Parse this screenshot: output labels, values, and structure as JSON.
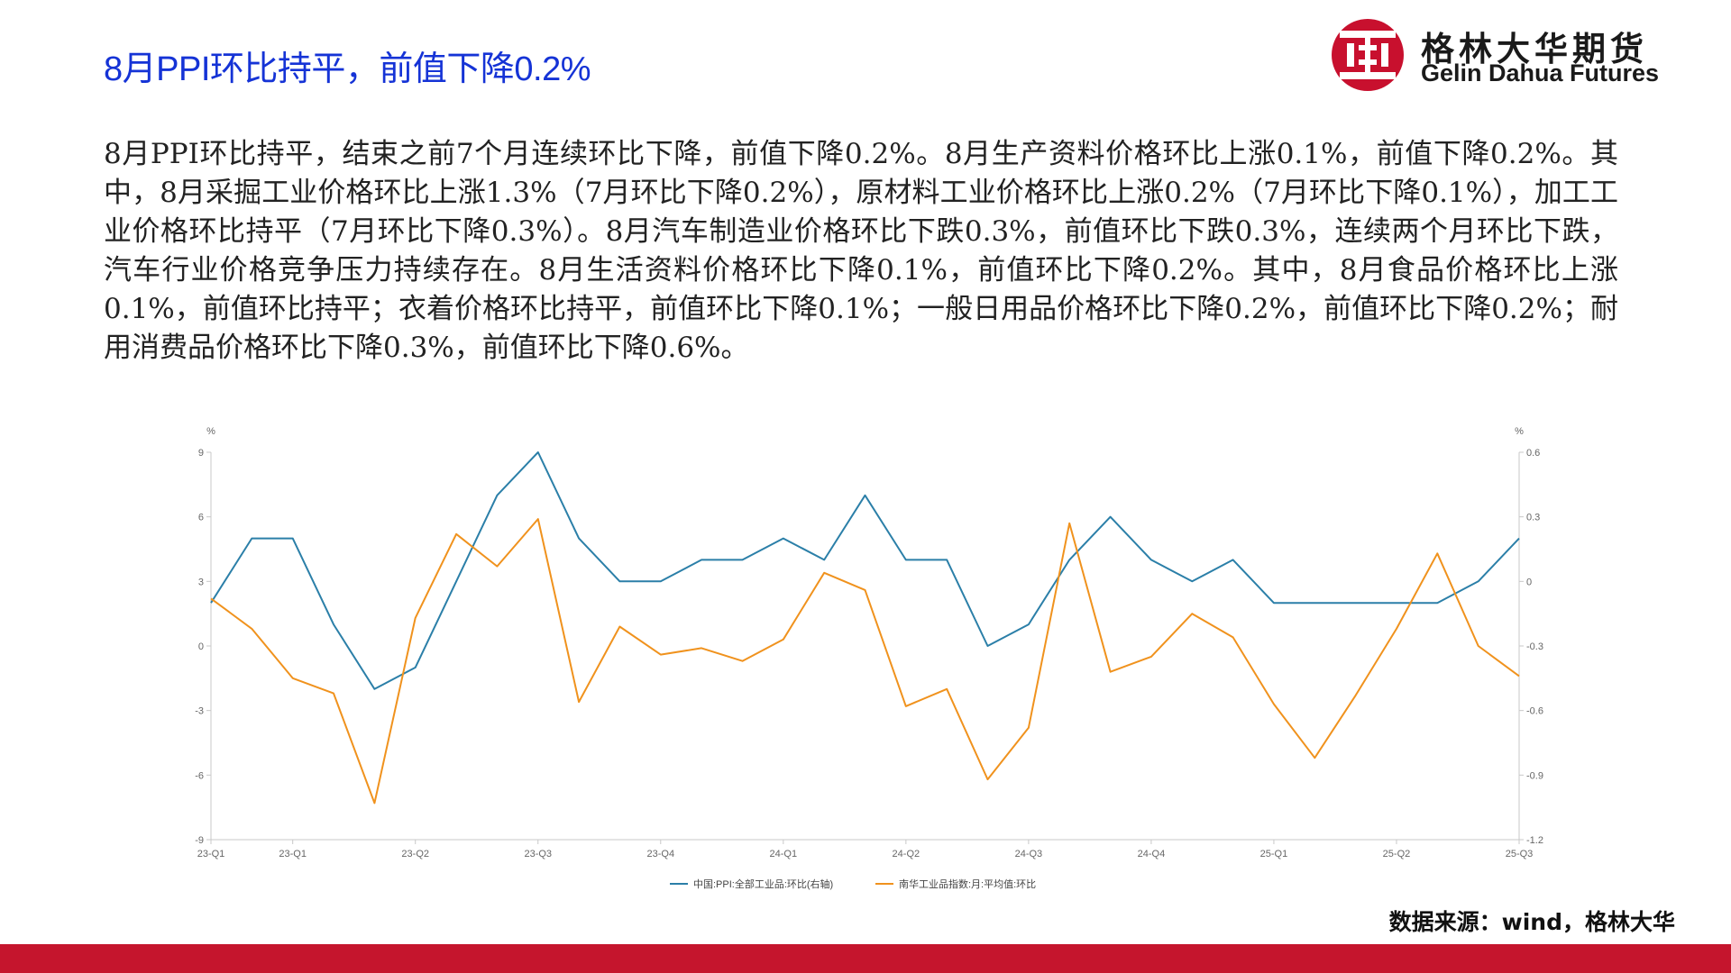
{
  "header": {
    "title": "8月PPI环比持平，前值下降0.2%",
    "brand_cn": "格林大华期货",
    "brand_en": "Gelin Dahua Futures",
    "brand_color": "#c8102e",
    "title_color": "#1533d6"
  },
  "body_text": "8月PPI环比持平，结束之前7个月连续环比下降，前值下降0.2%。8月生产资料价格环比上涨0.1%，前值下降0.2%。其中，8月采掘工业价格环比上涨1.3%（7月环比下降0.2%），原材料工业价格环比上涨0.2%（7月环比下降0.1%），加工工业价格环比持平（7月环比下降0.3%）。8月汽车制造业价格环比下跌0.3%，前值环比下跌0.3%，连续两个月环比下跌，汽车行业价格竞争压力持续存在。8月生活资料价格环比下降0.1%，前值环比下降0.2%。其中，8月食品价格环比上涨0.1%，前值环比持平；衣着价格环比持平，前值环比下降0.1%；一般日用品价格环比下降0.2%，前值环比下降0.2%；耐用消费品价格环比下降0.3%，前值环比下降0.6%。",
  "source": "数据来源：wind，格林大华",
  "chart_data": {
    "type": "line",
    "x_tick_labels": [
      "23-Q1",
      "23-Q1",
      "23-Q2",
      "23-Q3",
      "23-Q4",
      "24-Q1",
      "24-Q2",
      "24-Q3",
      "24-Q4",
      "25-Q1",
      "25-Q2",
      "25-Q3"
    ],
    "left_axis": {
      "unit": "%",
      "ylim": [
        -9,
        9
      ],
      "ticks": [
        9,
        6,
        3,
        0,
        -3,
        -6,
        -9
      ]
    },
    "right_axis": {
      "unit": "%",
      "ylim": [
        -1.2,
        0.6
      ],
      "ticks": [
        "0.6",
        "0.3",
        "0",
        "-0.3",
        "-0.6",
        "-0.9",
        "-1.2"
      ]
    },
    "grid": false,
    "legend_position": "bottom",
    "series": [
      {
        "name": "中国:PPI:全部工业品:环比(右轴)",
        "axis": "right",
        "color": "#2b7fa8",
        "values": [
          -0.1,
          0.2,
          0.2,
          -0.2,
          -0.5,
          -0.4,
          0.0,
          0.4,
          0.6,
          0.2,
          0.0,
          0.0,
          0.1,
          0.1,
          0.2,
          0.1,
          0.4,
          0.1,
          0.1,
          -0.3,
          -0.2,
          0.1,
          0.3,
          0.1,
          0.0,
          0.1,
          -0.1,
          -0.1,
          -0.1,
          -0.1,
          -0.1,
          0.0,
          0.2
        ]
      },
      {
        "name": "南华工业品指数:月:平均值:环比",
        "axis": "left",
        "color": "#f0921d",
        "values": [
          2.2,
          0.8,
          -1.5,
          -2.2,
          -7.3,
          1.3,
          5.2,
          3.7,
          5.9,
          -2.6,
          0.9,
          -0.4,
          -0.1,
          -0.7,
          0.3,
          3.4,
          2.6,
          -2.8,
          -2.0,
          -6.2,
          -3.8,
          5.7,
          -1.2,
          -0.5,
          1.5,
          0.4,
          -2.7,
          -5.2,
          -2.3,
          0.8,
          4.3,
          0.0,
          -1.4
        ]
      }
    ]
  }
}
